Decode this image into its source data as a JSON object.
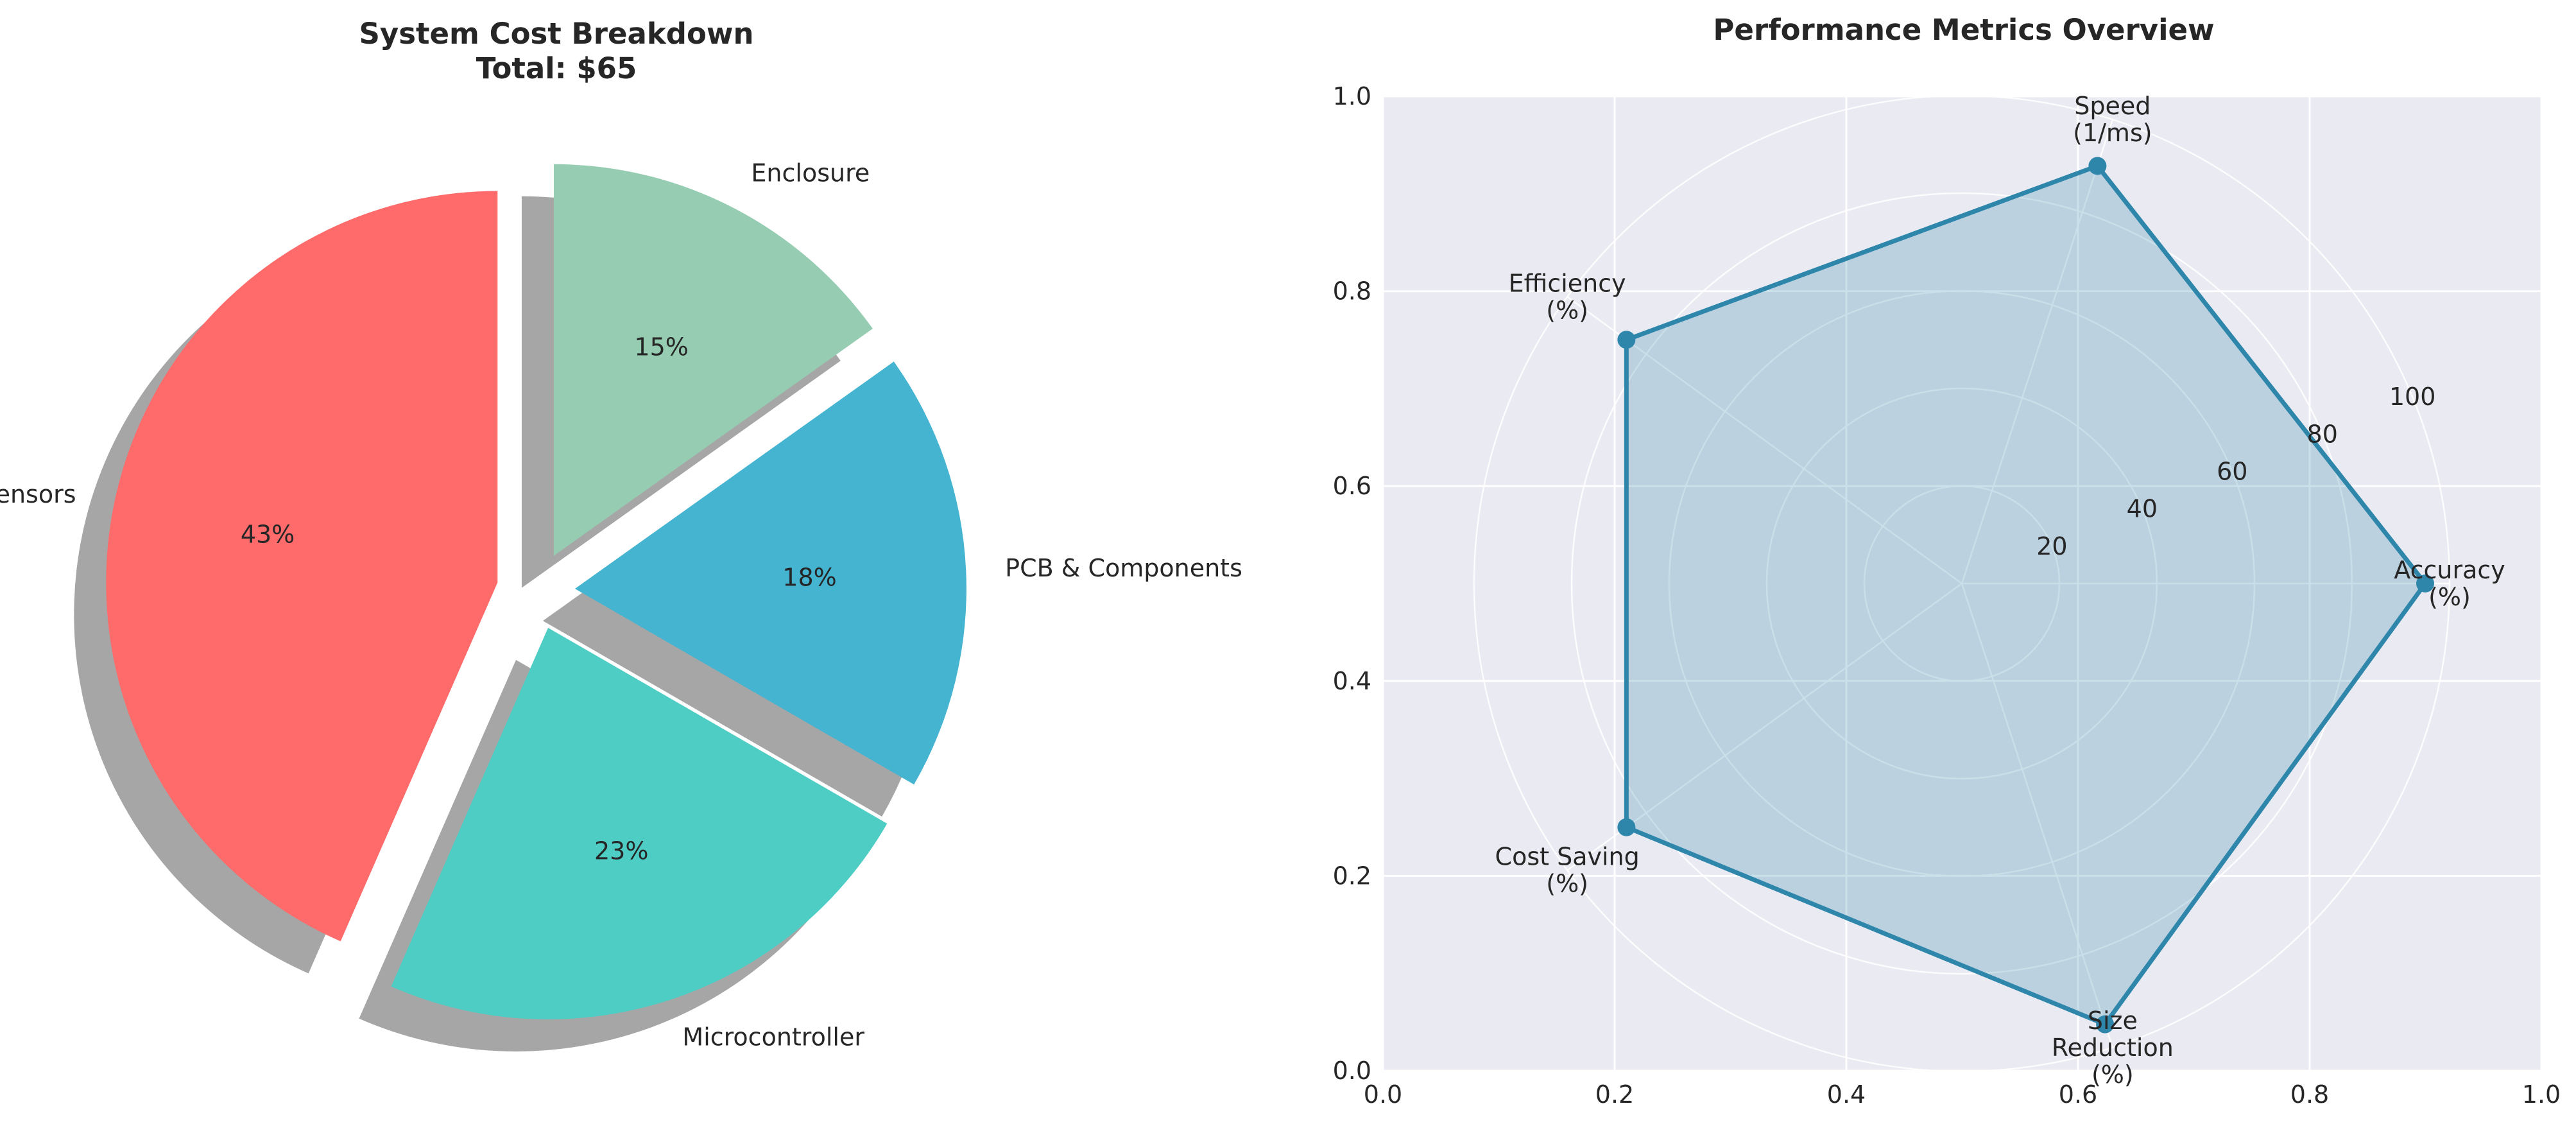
{
  "chart_data": [
    {
      "type": "pie",
      "title_line1": "System Cost Breakdown",
      "title_line2": "Total: $65",
      "slices": [
        {
          "label": "Sensors",
          "value": 43,
          "pct_label": "43%",
          "color": "#ff6b6b",
          "exploded": true
        },
        {
          "label": "Microcontroller",
          "value": 23,
          "pct_label": "23%",
          "color": "#4ecdc4",
          "exploded": true
        },
        {
          "label": "PCB & Components",
          "value": 18,
          "pct_label": "18%",
          "color": "#45b4d1",
          "exploded": true
        },
        {
          "label": "Enclosure",
          "value": 15,
          "pct_label": "15%",
          "color": "#96cdb2",
          "exploded": true
        }
      ],
      "start_angle_deg": 90,
      "direction": "counterclockwise",
      "shadow": true
    },
    {
      "type": "radar",
      "title": "Performance Metrics Overview",
      "axes": [
        {
          "label_line1": "Accuracy",
          "label_line2": "(%)",
          "value": 95
        },
        {
          "label_line1": "Speed",
          "label_line2": "(1/ms)",
          "value": 90
        },
        {
          "label_line1": "Efficiency",
          "label_line2": "(%)",
          "value": 85
        },
        {
          "label_line1": "Cost Saving",
          "label_line2": "(%)",
          "value": 85
        },
        {
          "label_line1": "Size",
          "label_line2": "Reduction",
          "label_line3": "(%)",
          "value": 95
        }
      ],
      "radial_ticks": [
        20,
        40,
        60,
        80,
        100
      ],
      "radial_max": 100,
      "line_color": "#2e86ab",
      "fill_color": "#2e86ab",
      "background_color": "#eaeaf2",
      "grid": true,
      "frame_x_ticks": [
        "0.0",
        "0.2",
        "0.4",
        "0.6",
        "0.8",
        "1.0"
      ],
      "frame_y_ticks": [
        "0.0",
        "0.2",
        "0.4",
        "0.6",
        "0.8",
        "1.0"
      ]
    }
  ]
}
